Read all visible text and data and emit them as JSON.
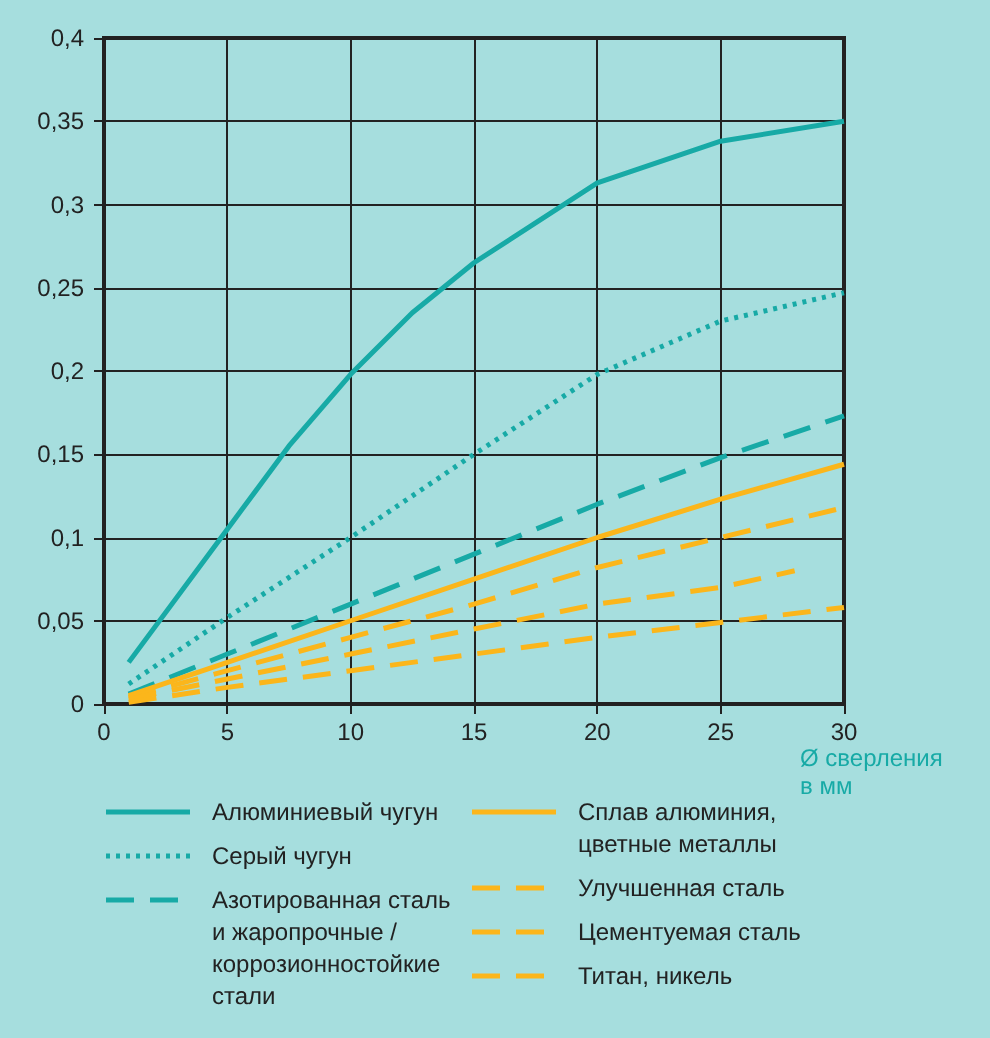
{
  "chart_data": {
    "type": "line",
    "xlabel": "Ø сверления в мм",
    "x": [
      1,
      5,
      7.5,
      10,
      12.5,
      15,
      20,
      25,
      30
    ],
    "series": [
      {
        "name": "Алюминиевый чугун",
        "color": "#17aaa6",
        "line_style": "solid",
        "values": [
          0.025,
          0.105,
          0.155,
          0.198,
          0.235,
          0.265,
          0.313,
          0.338,
          0.35
        ]
      },
      {
        "name": "Серый чугун",
        "color": "#17aaa6",
        "line_style": "dotted",
        "x": [
          1,
          5,
          10,
          15,
          20,
          25,
          30
        ],
        "values": [
          0.012,
          0.052,
          0.1,
          0.15,
          0.198,
          0.23,
          0.247
        ]
      },
      {
        "name": "Азотированная сталь и жаропрочные / коррозионностойкие стали",
        "color": "#17aaa6",
        "line_style": "dashed",
        "x": [
          1,
          5,
          10,
          15,
          20,
          25,
          30
        ],
        "values": [
          0.006,
          0.03,
          0.06,
          0.09,
          0.12,
          0.148,
          0.173
        ]
      },
      {
        "name": "Сплав алюминия, цветные металлы",
        "color": "#fbb61b",
        "line_style": "solid",
        "x": [
          1,
          5,
          10,
          15,
          20,
          25,
          30
        ],
        "values": [
          0.005,
          0.025,
          0.05,
          0.075,
          0.1,
          0.123,
          0.144
        ]
      },
      {
        "name": "Улучшенная сталь",
        "color": "#fbb61b",
        "line_style": "dashed",
        "x": [
          1,
          5,
          10,
          15,
          20,
          25,
          30
        ],
        "values": [
          0.004,
          0.02,
          0.04,
          0.06,
          0.082,
          0.1,
          0.118
        ]
      },
      {
        "name": "Цементуемая сталь",
        "color": "#fbb61b",
        "line_style": "dashed",
        "x": [
          1,
          5,
          10,
          15,
          20,
          25,
          28
        ],
        "values": [
          0.003,
          0.015,
          0.03,
          0.045,
          0.06,
          0.07,
          0.08
        ]
      },
      {
        "name": "Титан, никель",
        "color": "#fbb61b",
        "line_style": "dashed",
        "x": [
          1,
          5,
          10,
          15,
          20,
          25,
          30
        ],
        "values": [
          0.001,
          0.01,
          0.02,
          0.03,
          0.04,
          0.049,
          0.058
        ]
      }
    ],
    "xlim": [
      0,
      30
    ],
    "xticks": [
      0,
      5,
      10,
      15,
      20,
      25,
      30
    ],
    "ylim": [
      0,
      0.4
    ],
    "yticks": [
      0,
      {
        "value": 0.05,
        "label": "0,05"
      },
      {
        "value": 0.1,
        "label": "0,1"
      },
      {
        "value": 0.15,
        "label": "0,15"
      },
      {
        "value": 0.2,
        "label": "0,2"
      },
      {
        "value": 0.25,
        "label": "0,25"
      },
      {
        "value": 0.3,
        "label": "0,3"
      },
      {
        "value": 0.35,
        "label": "0,35"
      },
      {
        "value": 0.4,
        "label": "0,4"
      }
    ],
    "grid": true,
    "legend": "bottom",
    "marker": "none"
  }
}
